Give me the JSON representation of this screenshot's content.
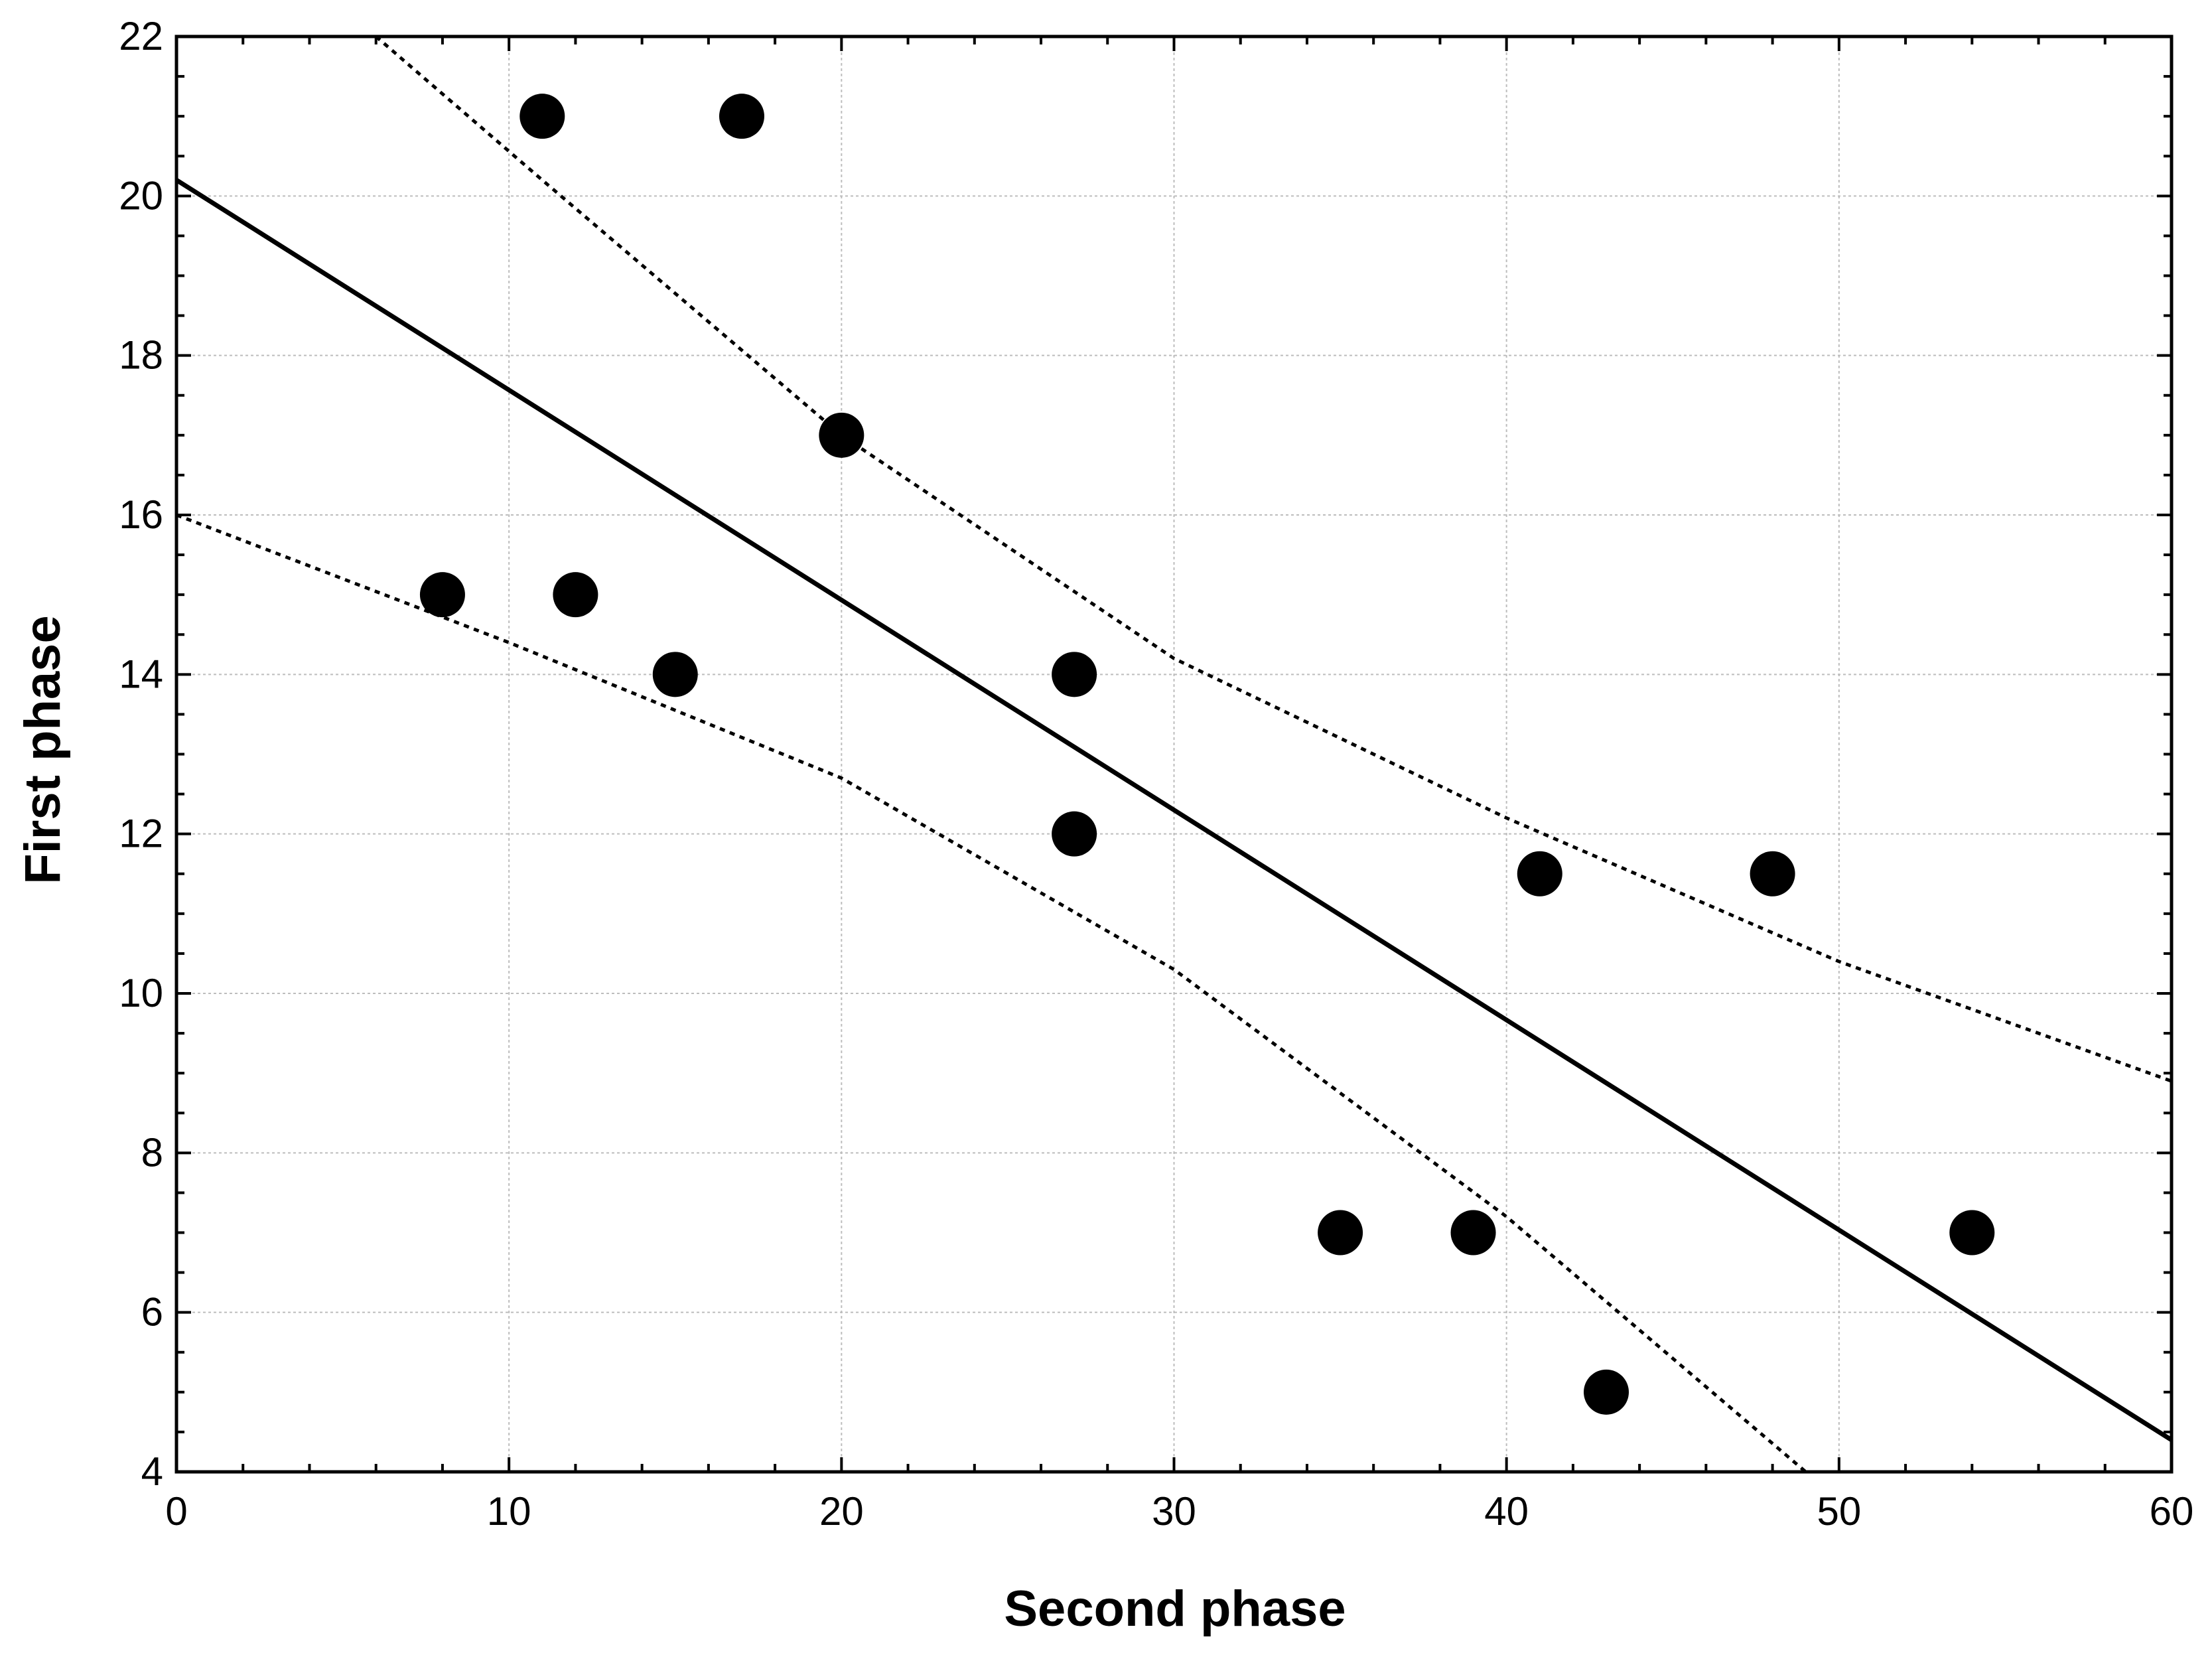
{
  "chart_data": {
    "type": "scatter",
    "xlabel": "Second phase",
    "ylabel": "First phase",
    "xlim": [
      0,
      60
    ],
    "ylim": [
      4,
      22
    ],
    "xticks": [
      0,
      10,
      20,
      30,
      40,
      50,
      60
    ],
    "yticks": [
      4,
      6,
      8,
      10,
      12,
      14,
      16,
      18,
      20,
      22
    ],
    "xtick_labels": [
      "0",
      "10",
      "20",
      "30",
      "40",
      "50",
      "60"
    ],
    "ytick_labels": [
      "4",
      "6",
      "8",
      "10",
      "12",
      "14",
      "16",
      "18",
      "20",
      "22"
    ],
    "grid": true,
    "points": [
      {
        "x": 8,
        "y": 15
      },
      {
        "x": 11,
        "y": 21
      },
      {
        "x": 12,
        "y": 15
      },
      {
        "x": 15,
        "y": 14
      },
      {
        "x": 17,
        "y": 21
      },
      {
        "x": 20,
        "y": 17
      },
      {
        "x": 27,
        "y": 14
      },
      {
        "x": 27,
        "y": 12
      },
      {
        "x": 35,
        "y": 7
      },
      {
        "x": 39,
        "y": 7
      },
      {
        "x": 41,
        "y": 11.5
      },
      {
        "x": 43,
        "y": 5
      },
      {
        "x": 48,
        "y": 11.5
      },
      {
        "x": 54,
        "y": 7
      }
    ],
    "regression_line": {
      "x": [
        0,
        60
      ],
      "y": [
        20.2,
        4.4
      ]
    },
    "upper_confidence_band": {
      "x": [
        6,
        11,
        20,
        30,
        40,
        50,
        60
      ],
      "y": [
        22,
        20.2,
        17,
        14.2,
        12.2,
        10.4,
        8.9
      ]
    },
    "lower_confidence_band": {
      "x": [
        0,
        10,
        20,
        30,
        40,
        49
      ],
      "y": [
        16,
        14.4,
        12.7,
        10.3,
        7.2,
        4
      ]
    }
  }
}
